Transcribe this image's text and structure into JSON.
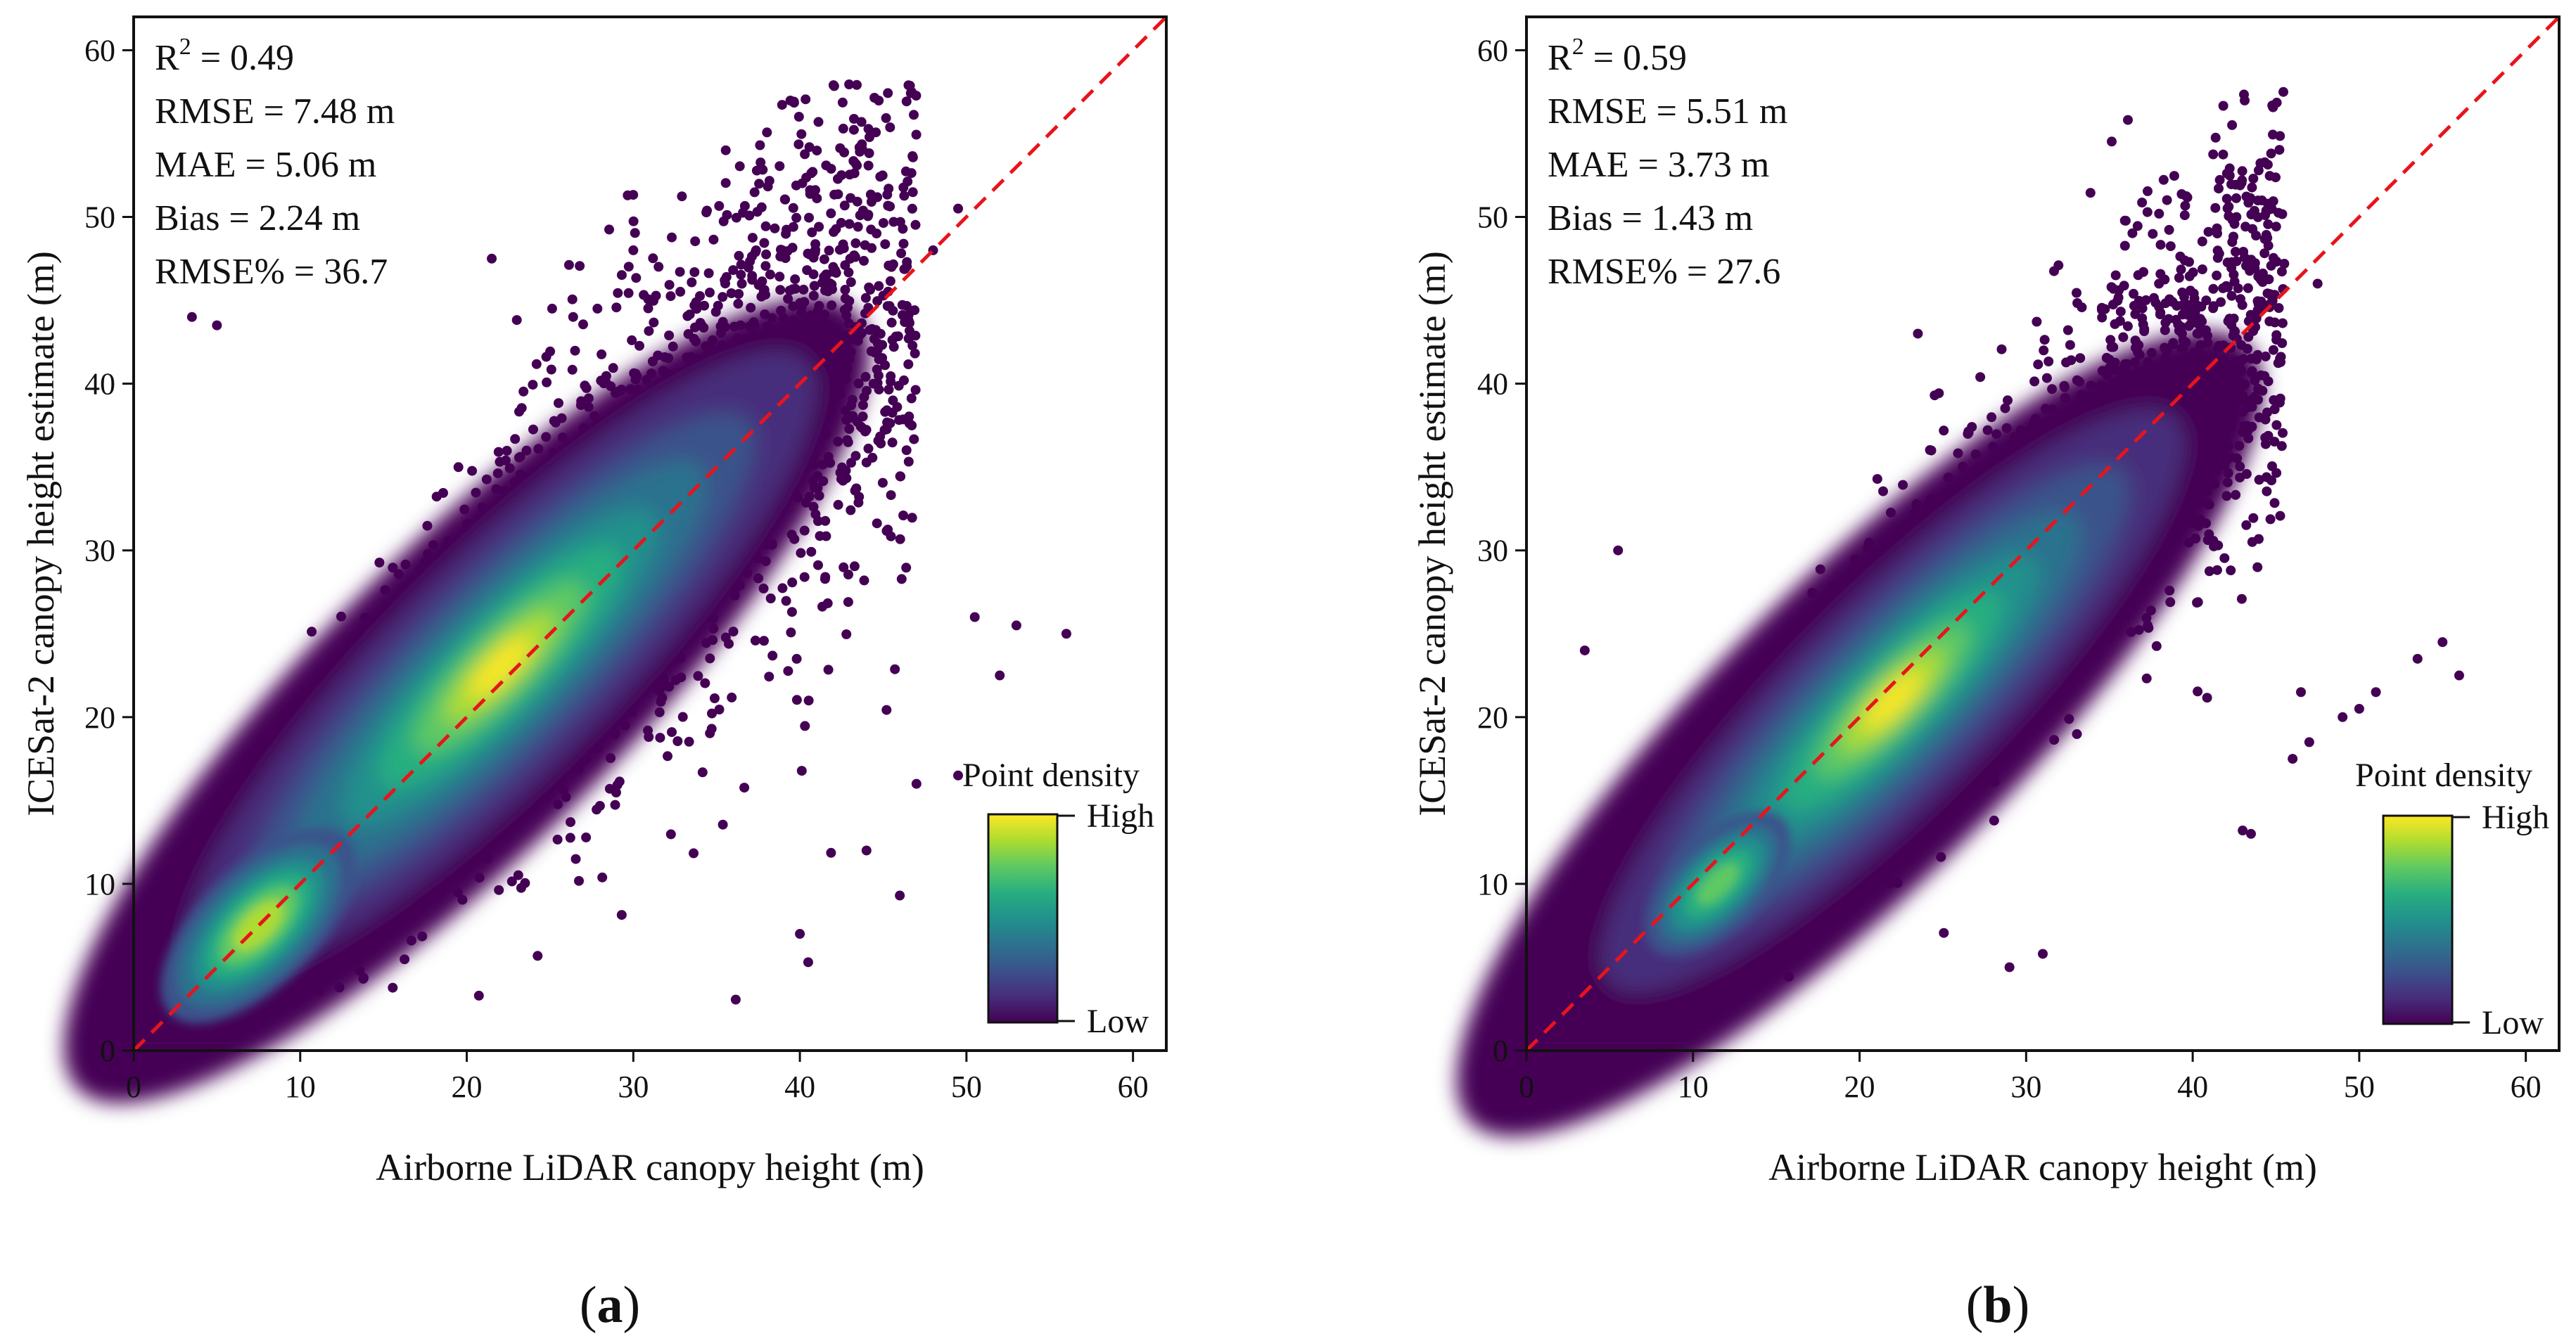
{
  "panels": [
    {
      "id": "a",
      "panel_label_open": "(",
      "panel_label_letter": "a",
      "panel_label_close": ")",
      "stats": {
        "r2_prefix": "R",
        "r2_sup": "2",
        "r2_value": " = 0.49",
        "rmse": "RMSE = 7.48 m",
        "mae": "MAE = 5.06 m",
        "bias": "Bias = 2.24 m",
        "rmse_pct": "RMSE% = 36.7"
      },
      "colorbar": {
        "title": "Point density",
        "high": "High",
        "low": "Low"
      }
    },
    {
      "id": "b",
      "panel_label_open": "(",
      "panel_label_letter": "b",
      "panel_label_close": ")",
      "stats": {
        "r2_prefix": "R",
        "r2_sup": "2",
        "r2_value": " = 0.59",
        "rmse": "RMSE = 5.51 m",
        "mae": "MAE = 3.73 m",
        "bias": "Bias = 1.43 m",
        "rmse_pct": "RMSE% = 27.6"
      },
      "colorbar": {
        "title": "Point density",
        "high": "High",
        "low": "Low"
      }
    }
  ],
  "colors": {
    "reference_line": "#e8141b",
    "viridis": [
      "#440154",
      "#472d7b",
      "#3b528b",
      "#2c728e",
      "#21918c",
      "#28ae80",
      "#5ec962",
      "#addc30",
      "#fde725"
    ]
  },
  "chart_data": [
    {
      "type": "scatter",
      "title": "",
      "xlabel": "Airborne LiDAR canopy height (m)",
      "ylabel": "ICESat-2 canopy height estimate (m)",
      "xlim": [
        0,
        62
      ],
      "ylim": [
        0,
        62
      ],
      "xticks": [
        0,
        10,
        20,
        30,
        40,
        50,
        60
      ],
      "yticks": [
        0,
        10,
        20,
        30,
        40,
        50,
        60
      ],
      "reference_line": {
        "style": "dashed",
        "x": [
          0,
          62
        ],
        "y": [
          0,
          62
        ]
      },
      "color_scale": "point density (Low to High)",
      "density_cores": [
        {
          "x": 22,
          "y": 23,
          "level": "high"
        },
        {
          "x": 7.5,
          "y": 7.5,
          "level": "high"
        }
      ],
      "outlier_points": [
        [
          49.5,
          50.5
        ],
        [
          48,
          48
        ],
        [
          45.5,
          47
        ],
        [
          56,
          25
        ],
        [
          53,
          25.5
        ],
        [
          52,
          22.5
        ],
        [
          50.5,
          26
        ],
        [
          46,
          9.3
        ],
        [
          47,
          16
        ],
        [
          49.5,
          16.5
        ],
        [
          40,
          7
        ],
        [
          40.5,
          5.3
        ],
        [
          44,
          12
        ],
        [
          5,
          43.5
        ],
        [
          3.5,
          44
        ],
        [
          21.5,
          47.5
        ],
        [
          30,
          48
        ],
        [
          42,
          47
        ]
      ]
    },
    {
      "type": "scatter",
      "title": "",
      "xlabel": "Airborne LiDAR canopy height (m)",
      "ylabel": "ICESat-2 canopy height estimate (m)",
      "xlim": [
        0,
        62
      ],
      "ylim": [
        0,
        62
      ],
      "xticks": [
        0,
        10,
        20,
        30,
        40,
        50,
        60
      ],
      "yticks": [
        0,
        10,
        20,
        30,
        40,
        50,
        60
      ],
      "reference_line": {
        "style": "dashed",
        "x": [
          0,
          62
        ],
        "y": [
          0,
          62
        ]
      },
      "color_scale": "point density (Low to High)",
      "density_cores": [
        {
          "x": 22,
          "y": 21,
          "level": "high"
        },
        {
          "x": 11.5,
          "y": 10,
          "level": "medium"
        }
      ],
      "outlier_points": [
        [
          47.5,
          46
        ],
        [
          55,
          24.5
        ],
        [
          56,
          22.5
        ],
        [
          53.5,
          23.5
        ],
        [
          51,
          21.5
        ],
        [
          50,
          20.5
        ],
        [
          49,
          20
        ],
        [
          47,
          18.5
        ],
        [
          46,
          17.5
        ],
        [
          43.5,
          13
        ],
        [
          43,
          13.2
        ],
        [
          46.5,
          21.5
        ],
        [
          3.5,
          24
        ],
        [
          5.5,
          30
        ],
        [
          23.5,
          43
        ],
        [
          29,
          5
        ],
        [
          31,
          5.8
        ]
      ]
    }
  ]
}
